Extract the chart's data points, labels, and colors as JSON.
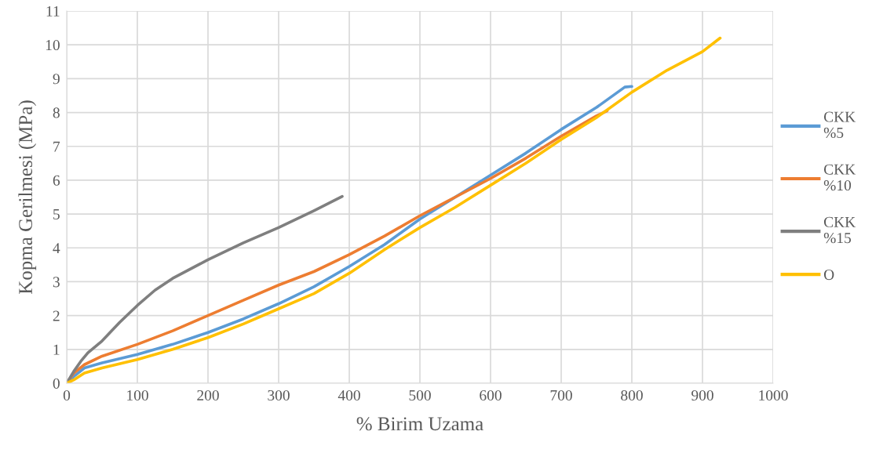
{
  "chart_data": {
    "type": "line",
    "xlabel": "% Birim Uzama",
    "ylabel": "Kopma Gerilmesi (MPa)",
    "xlim": [
      0,
      1000
    ],
    "xticks": [
      0,
      100,
      200,
      300,
      400,
      500,
      600,
      700,
      800,
      900,
      1000
    ],
    "ylim": [
      0,
      11
    ],
    "yticks": [
      0,
      1,
      2,
      3,
      4,
      5,
      6,
      7,
      8,
      9,
      10,
      11
    ],
    "grid": true,
    "legend": "right",
    "marker": "none",
    "line_style": "solid",
    "series": [
      {
        "name": "CKK %5",
        "color": "#5b9bd5",
        "x": [
          0,
          10,
          25,
          50,
          100,
          150,
          200,
          250,
          300,
          350,
          400,
          450,
          500,
          550,
          600,
          650,
          700,
          750,
          790,
          800
        ],
        "values": [
          0,
          0.2,
          0.45,
          0.6,
          0.85,
          1.15,
          1.5,
          1.9,
          2.35,
          2.85,
          3.45,
          4.1,
          4.85,
          5.5,
          6.15,
          6.8,
          7.5,
          8.15,
          8.75,
          8.77
        ]
      },
      {
        "name": "CKK %10",
        "color": "#ed7d31",
        "x": [
          0,
          10,
          25,
          50,
          100,
          150,
          200,
          250,
          300,
          350,
          400,
          450,
          500,
          550,
          600,
          650,
          700,
          750,
          765
        ],
        "values": [
          0,
          0.3,
          0.55,
          0.8,
          1.15,
          1.55,
          2.0,
          2.45,
          2.9,
          3.3,
          3.8,
          4.35,
          4.95,
          5.5,
          6.05,
          6.65,
          7.3,
          7.9,
          8.05
        ]
      },
      {
        "name": "CKK %15",
        "color": "#7f7f7f",
        "x": [
          0,
          10,
          20,
          30,
          50,
          75,
          100,
          125,
          150,
          200,
          250,
          300,
          350,
          390
        ],
        "values": [
          0,
          0.35,
          0.65,
          0.9,
          1.25,
          1.8,
          2.3,
          2.75,
          3.1,
          3.65,
          4.15,
          4.6,
          5.1,
          5.52
        ]
      },
      {
        "name": "O",
        "color": "#ffc000",
        "x": [
          0,
          10,
          25,
          50,
          100,
          150,
          200,
          250,
          300,
          350,
          400,
          450,
          500,
          550,
          600,
          650,
          700,
          750,
          800,
          850,
          900,
          925
        ],
        "values": [
          0,
          0.1,
          0.3,
          0.45,
          0.7,
          1.0,
          1.35,
          1.75,
          2.2,
          2.65,
          3.25,
          3.95,
          4.6,
          5.2,
          5.85,
          6.5,
          7.2,
          7.85,
          8.6,
          9.25,
          9.8,
          10.2
        ]
      }
    ]
  }
}
